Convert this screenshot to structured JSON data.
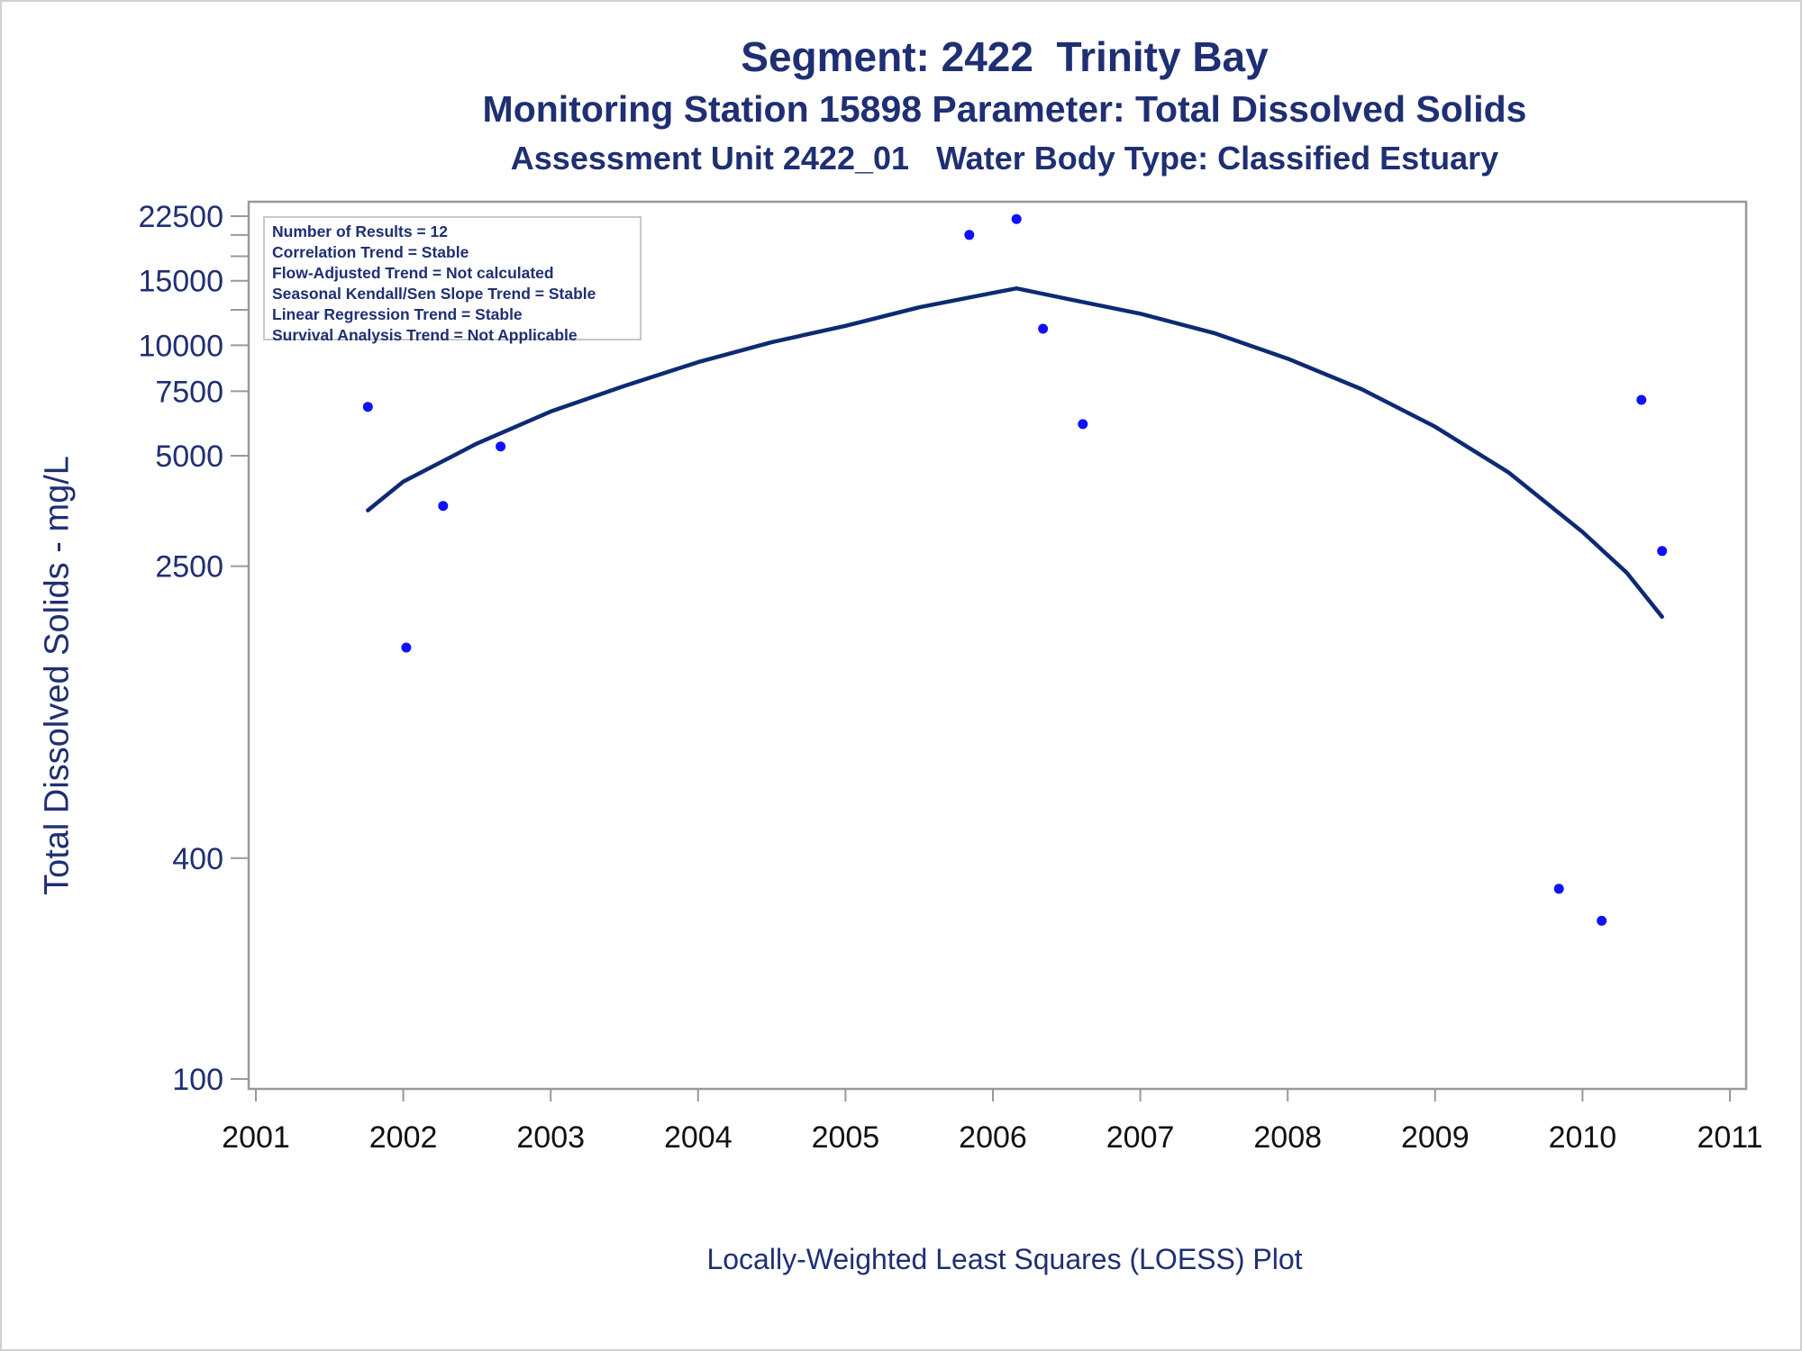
{
  "titles": {
    "line1": "Segment: 2422  Trinity Bay",
    "line2": "Monitoring Station 15898 Parameter: Total Dissolved Solids",
    "line3": "Assessment Unit 2422_01   Water Body Type: Classified Estuary"
  },
  "stats_box": [
    "Number of Results = 12",
    "Correlation Trend = Stable",
    "Flow-Adjusted Trend = Not calculated",
    "Seasonal Kendall/Sen Slope Trend = Stable",
    "Linear Regression Trend = Stable",
    "Survival Analysis Trend = Not Applicable"
  ],
  "footnote": "Locally-Weighted Least Squares (LOESS) Plot",
  "colors": {
    "points": "#1010ff",
    "curve": "#0d2a73",
    "text": "#1f2f73",
    "axis": "#999999"
  },
  "chart_data": {
    "type": "scatter",
    "ylabel": "Total Dissolved Solids - mg/L",
    "xlabel": "",
    "y_scale": "log",
    "xlim": [
      2001,
      2011
    ],
    "ylim": [
      100,
      22500
    ],
    "x_ticks": [
      2001,
      2002,
      2003,
      2004,
      2005,
      2006,
      2007,
      2008,
      2009,
      2010,
      2011
    ],
    "y_ticks": [
      100,
      400,
      2500,
      5000,
      7500,
      10000,
      15000,
      22500
    ],
    "y_minor_ticks": [
      12500,
      17500,
      20000
    ],
    "series": [
      {
        "kind": "points",
        "x": [
          2001.76,
          2002.02,
          2002.27,
          2002.66,
          2005.84,
          2006.16,
          2006.34,
          2006.61,
          2009.84,
          2010.13,
          2010.4,
          2010.54
        ],
        "y": [
          6800,
          1500,
          3650,
          5300,
          20000,
          22100,
          11100,
          6100,
          330,
          270,
          7100,
          2750
        ]
      },
      {
        "kind": "loess",
        "x": [
          2001.76,
          2002.0,
          2002.5,
          2003.0,
          2003.5,
          2004.0,
          2004.5,
          2005.0,
          2005.5,
          2006.0,
          2006.16,
          2006.5,
          2007.0,
          2007.5,
          2008.0,
          2008.5,
          2009.0,
          2009.5,
          2010.0,
          2010.3,
          2010.54
        ],
        "y": [
          3550,
          4250,
          5400,
          6600,
          7750,
          9000,
          10200,
          11300,
          12700,
          13900,
          14300,
          13400,
          12200,
          10800,
          9200,
          7600,
          6000,
          4500,
          3100,
          2400,
          1820
        ]
      }
    ]
  }
}
